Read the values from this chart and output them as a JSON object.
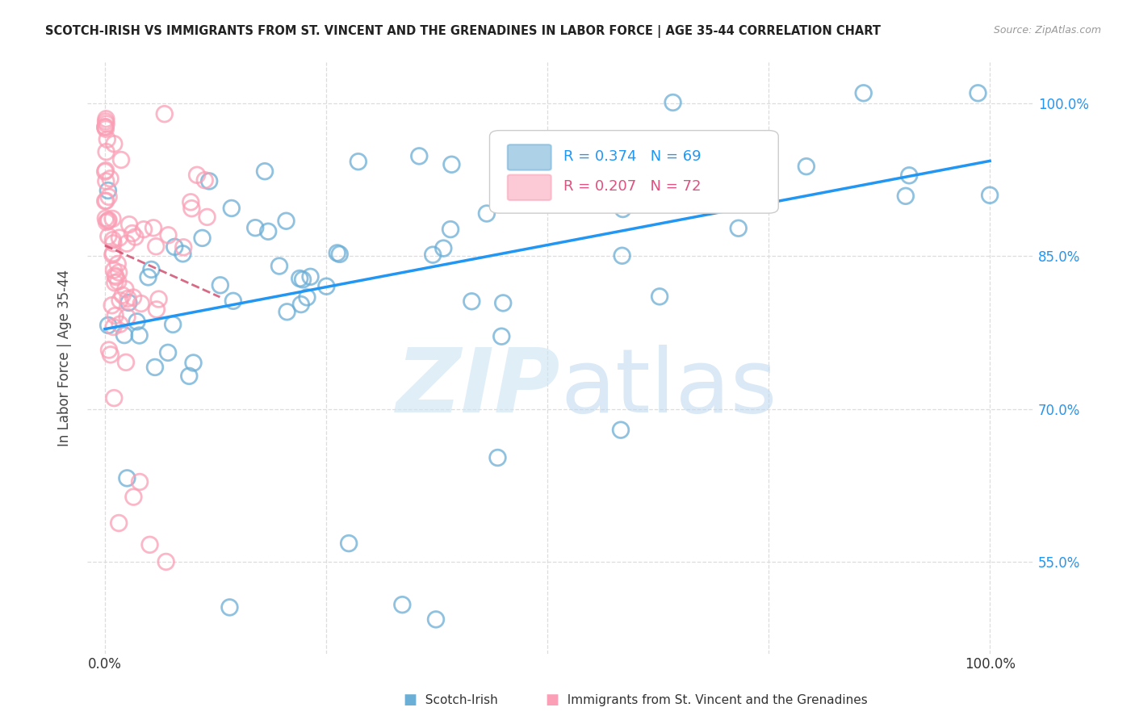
{
  "title": "SCOTCH-IRISH VS IMMIGRANTS FROM ST. VINCENT AND THE GRENADINES IN LABOR FORCE | AGE 35-44 CORRELATION CHART",
  "source": "Source: ZipAtlas.com",
  "ylabel": "In Labor Force | Age 35-44",
  "blue_R": 0.374,
  "blue_N": 69,
  "pink_R": 0.207,
  "pink_N": 72,
  "legend_blue": "Scotch-Irish",
  "legend_pink": "Immigrants from St. Vincent and the Grenadines",
  "blue_color": "#6baed6",
  "pink_color": "#fa9fb5",
  "blue_line_color": "#2196F3",
  "pink_line_color": "#d05070",
  "y_ticks": [
    0.55,
    0.7,
    0.85,
    1.0
  ],
  "y_tick_labels": [
    "55.0%",
    "70.0%",
    "85.0%",
    "100.0%"
  ],
  "x_ticks": [
    0.0,
    0.25,
    0.5,
    0.75,
    1.0
  ],
  "x_tick_labels": [
    "0.0%",
    "",
    "",
    "",
    "100.0%"
  ],
  "xlim": [
    -0.02,
    1.05
  ],
  "ylim": [
    0.46,
    1.04
  ],
  "watermark_zip_color": "#cce4f4",
  "watermark_atlas_color": "#bcd8ee",
  "grid_color": "#dddddd",
  "background_color": "#ffffff",
  "title_color": "#222222",
  "source_color": "#999999",
  "axis_label_color": "#444444"
}
